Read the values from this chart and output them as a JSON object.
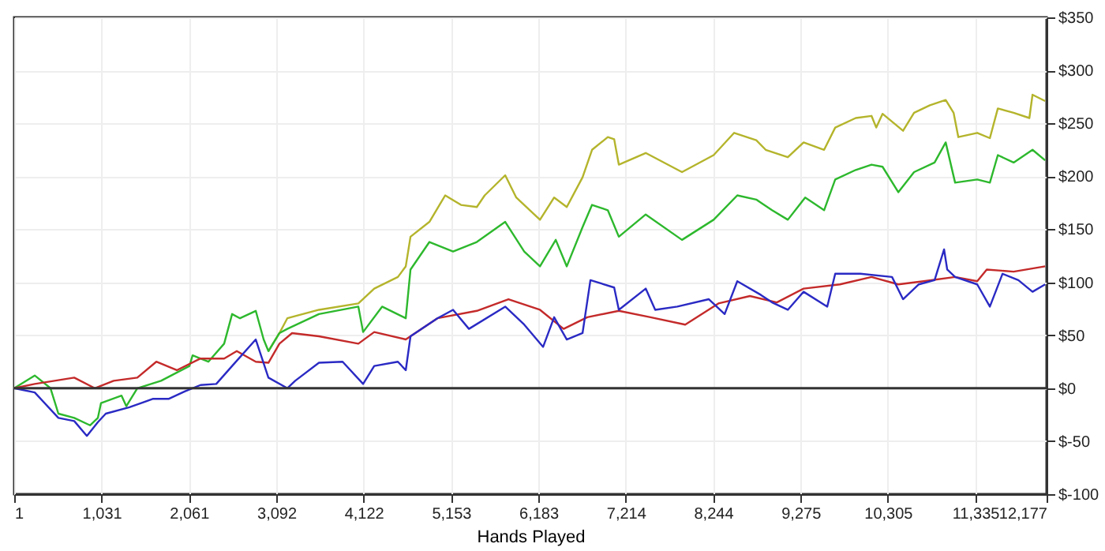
{
  "chart_data": {
    "type": "line",
    "xlabel": "Hands Played",
    "xlim": [
      1,
      12177
    ],
    "xticks": [
      1,
      {
        "value": 1031,
        "label": "1,031"
      },
      {
        "value": 2061,
        "label": "2,061"
      },
      {
        "value": 3092,
        "label": "3,092"
      },
      {
        "value": 4122,
        "label": "4,122"
      },
      {
        "value": 5153,
        "label": "5,153"
      },
      {
        "value": 6183,
        "label": "6,183"
      },
      {
        "value": 7214,
        "label": "7,214"
      },
      {
        "value": 8244,
        "label": "8,244"
      },
      {
        "value": 9275,
        "label": "9,275"
      },
      {
        "value": 10305,
        "label": "10,305"
      },
      {
        "value": 11335,
        "label": "11,335"
      },
      {
        "value": 12177,
        "label": "12,177"
      }
    ],
    "ylim": [
      -100,
      350
    ],
    "yticks": [
      {
        "value": -100,
        "label": "$-100"
      },
      {
        "value": -50,
        "label": "$-50"
      },
      {
        "value": 0,
        "label": "$0"
      },
      {
        "value": 50,
        "label": "$50"
      },
      {
        "value": 100,
        "label": "$100"
      },
      {
        "value": 150,
        "label": "$150"
      },
      {
        "value": 200,
        "label": "$200"
      },
      {
        "value": 250,
        "label": "$250"
      },
      {
        "value": 300,
        "label": "$300"
      },
      {
        "value": 350,
        "label": "$350"
      }
    ],
    "grid": true,
    "legend": false,
    "ref_lines": [
      {
        "axis": "y",
        "value": 0,
        "color": "#333333"
      }
    ],
    "series": [
      {
        "color": "#b4b42c",
        "x": [
          2999,
          3129,
          3222,
          3595,
          4060,
          4247,
          4526,
          4619,
          4675,
          4898,
          5084,
          5270,
          5457,
          5550,
          5792,
          5922,
          6202,
          6369,
          6518,
          6704,
          6816,
          7002,
          7077,
          7132,
          7449,
          7877,
          8250,
          8492,
          8753,
          8864,
          9125,
          9311,
          9553,
          9684,
          9926,
          10112,
          10168,
          10242,
          10484,
          10614,
          10800,
          10987,
          11080,
          11136,
          11359,
          11508,
          11602,
          11788,
          11974,
          12011,
          12160
        ],
        "values": [
          35,
          52,
          66,
          74,
          80,
          94,
          105,
          115,
          143,
          157,
          182,
          173,
          171,
          182,
          201,
          180,
          159,
          180,
          171,
          199,
          225,
          237,
          235,
          211,
          222,
          204,
          220,
          241,
          234,
          225,
          218,
          232,
          225,
          246,
          255,
          257,
          246,
          259,
          243,
          260,
          267,
          272,
          260,
          237,
          241,
          236,
          264,
          260,
          255,
          277,
          271
        ]
      },
      {
        "color": "#2db82d",
        "x": [
          1,
          243,
          429,
          522,
          709,
          895,
          988,
          1025,
          1267,
          1323,
          1453,
          1733,
          2068,
          2105,
          2291,
          2477,
          2571,
          2664,
          2850,
          2943,
          2999,
          3129,
          3222,
          3595,
          4060,
          4116,
          4340,
          4619,
          4675,
          4898,
          5177,
          5457,
          5792,
          6016,
          6202,
          6388,
          6518,
          6704,
          6816,
          7002,
          7132,
          7449,
          7877,
          8250,
          8529,
          8753,
          8939,
          9125,
          9330,
          9553,
          9684,
          9926,
          10112,
          10242,
          10428,
          10614,
          10856,
          10987,
          11098,
          11359,
          11508,
          11602,
          11788,
          12011,
          12160
        ],
        "values": [
          0,
          12,
          0,
          -24,
          -28,
          -35,
          -28,
          -14,
          -7,
          -17,
          0,
          7,
          21,
          31,
          25,
          42,
          70,
          66,
          73,
          46,
          35,
          52,
          56,
          70,
          77,
          53,
          77,
          66,
          112,
          138,
          129,
          138,
          157,
          129,
          115,
          140,
          115,
          152,
          173,
          168,
          143,
          164,
          140,
          159,
          182,
          178,
          168,
          159,
          180,
          168,
          197,
          206,
          211,
          209,
          185,
          204,
          213,
          232,
          194,
          197,
          194,
          220,
          213,
          225,
          215
        ]
      },
      {
        "color": "#c42a2a",
        "x": [
          1,
          243,
          709,
          951,
          1174,
          1453,
          1677,
          1919,
          2198,
          2477,
          2626,
          2850,
          2999,
          3129,
          3278,
          3595,
          4060,
          4247,
          4619,
          4992,
          5457,
          5830,
          6202,
          6481,
          6760,
          7132,
          7505,
          7915,
          8306,
          8678,
          8995,
          9311,
          9740,
          10112,
          10428,
          10726,
          11098,
          11359,
          11471,
          11788,
          12160
        ],
        "values": [
          0,
          4,
          10,
          0,
          7,
          10,
          25,
          17,
          28,
          28,
          35,
          25,
          24,
          42,
          52,
          49,
          42,
          53,
          46,
          66,
          73,
          84,
          74,
          56,
          67,
          73,
          67,
          60,
          80,
          87,
          81,
          94,
          98,
          105,
          98,
          101,
          105,
          101,
          112,
          110,
          115
        ]
      },
      {
        "color": "#2a2ac4",
        "x": [
          1,
          243,
          522,
          709,
          858,
          988,
          1081,
          1360,
          1640,
          1826,
          2012,
          2198,
          2384,
          2571,
          2850,
          2999,
          3222,
          3315,
          3595,
          3874,
          4116,
          4247,
          4526,
          4619,
          4675,
          4992,
          5177,
          5364,
          5792,
          6016,
          6239,
          6369,
          6518,
          6704,
          6797,
          7077,
          7132,
          7449,
          7561,
          7822,
          8194,
          8380,
          8529,
          8808,
          8939,
          9125,
          9311,
          9590,
          9684,
          9981,
          10354,
          10484,
          10670,
          10856,
          10968,
          11005,
          11098,
          11359,
          11508,
          11657,
          11844,
          12011,
          12160
        ],
        "values": [
          0,
          -4,
          -28,
          -31,
          -45,
          -32,
          -24,
          -18,
          -10,
          -10,
          -3,
          3,
          4,
          21,
          46,
          10,
          0,
          7,
          24,
          25,
          4,
          21,
          25,
          17,
          49,
          66,
          74,
          56,
          77,
          60,
          39,
          67,
          46,
          52,
          102,
          95,
          74,
          94,
          74,
          77,
          84,
          70,
          101,
          88,
          81,
          74,
          91,
          77,
          108,
          108,
          105,
          84,
          98,
          102,
          131,
          112,
          105,
          98,
          77,
          108,
          102,
          91,
          98
        ]
      }
    ]
  }
}
